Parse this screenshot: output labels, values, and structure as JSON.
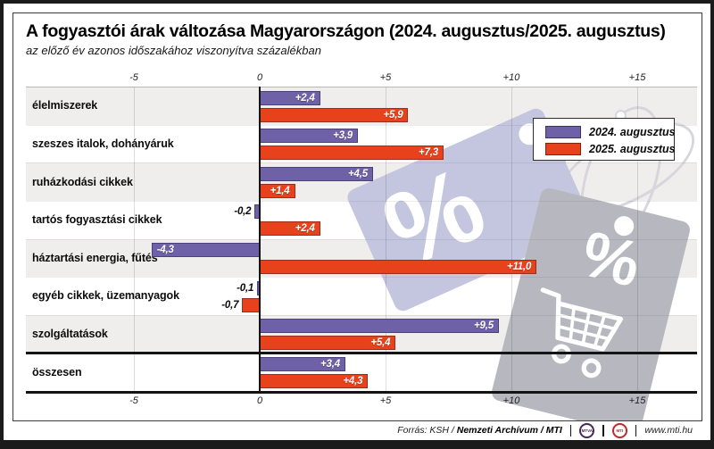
{
  "header": {
    "title": "A fogyasztói árak változása Magyarországon (2024. augusztus/2025. augusztus)",
    "subtitle": "az előző év azonos időszakához viszonyítva százalékban"
  },
  "chart_data": {
    "type": "bar",
    "orientation": "horizontal",
    "unit": "percent vs same period of previous year",
    "categories": [
      "élelmiszerek",
      "szeszes italok, dohányáruk",
      "ruházkodási cikkek",
      "tartós fogyasztási cikkek",
      "háztartási energia, fűtés",
      "egyéb cikkek, üzemanyagok",
      "szolgáltatások",
      "összesen"
    ],
    "series": [
      {
        "name": "2024. augusztus",
        "color": "#6e61a8",
        "values": [
          2.4,
          3.9,
          4.5,
          -0.2,
          -4.3,
          -0.1,
          9.5,
          3.4
        ],
        "labels": [
          "+2,4",
          "+3,9",
          "+4,5",
          "-0,2",
          "-4,3",
          "-0,1",
          "+9,5",
          "+3,4"
        ]
      },
      {
        "name": "2025. augusztus",
        "color": "#e8421c",
        "values": [
          5.9,
          7.3,
          1.4,
          2.4,
          11.0,
          -0.7,
          5.4,
          4.3
        ],
        "labels": [
          "+5,9",
          "+7,3",
          "+1,4",
          "+2,4",
          "+11,0",
          "-0,7",
          "+5,4",
          "+4,3"
        ]
      }
    ],
    "xlim": [
      -5.7,
      17.4
    ],
    "ticks": [
      {
        "value": -5,
        "label": "-5"
      },
      {
        "value": 0,
        "label": "0"
      },
      {
        "value": 5,
        "label": "+5"
      },
      {
        "value": 10,
        "label": "+10"
      },
      {
        "value": 15,
        "label": "+15"
      }
    ],
    "grid": true,
    "row_band_color": "#efeeec",
    "legend_position": "top-right",
    "totals_separator_before_category": "összesen"
  },
  "watermark": {
    "percent": "%"
  },
  "footer": {
    "source_regular": "Forrás: KSH / ",
    "source_bold": "Nemzeti Archívum / MTI",
    "logo_mtva": "MTVA",
    "logo_mti": "MTI",
    "website": "www.mti.hu"
  }
}
